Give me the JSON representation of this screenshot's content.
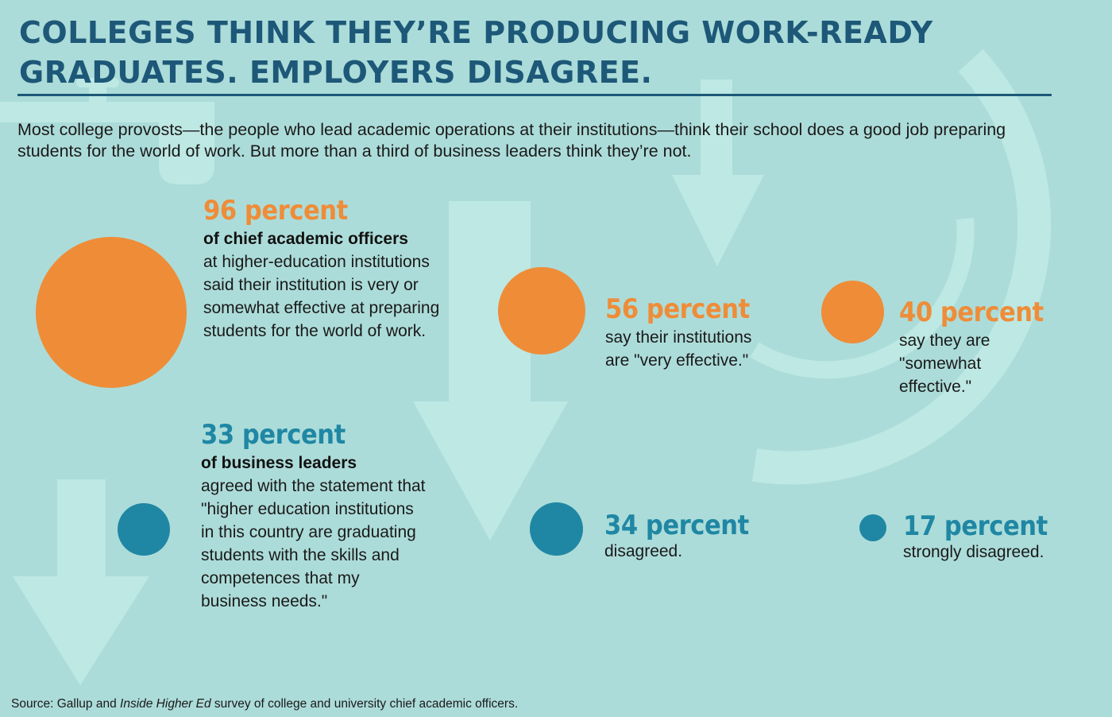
{
  "title": "Colleges think they’re producing work-ready graduates. Employers disagree.",
  "intro": "Most college provosts—the people who lead academic operations at their institutions—think their school does a good job preparing students for the world of work. But more than a third of business leaders think they’re not.",
  "colors": {
    "background": "#acdcd9",
    "orange": "#ef8c38",
    "teal": "#1f87a4",
    "title": "#1d5878",
    "watermark": "#bde8e3"
  },
  "icons": [
    "faucet-icon",
    "down-arrow-icon",
    "circular-arc-icon"
  ],
  "stats": {
    "academic_total": {
      "big": "96 percent",
      "lead": "of chief academic officers",
      "desc": "at higher-education institutions said their institution is very or somewhat effective at preparing students for the world of work."
    },
    "very_effective": {
      "big": "56 percent",
      "desc": "say their institutions are \"very effective.\""
    },
    "somewhat_effective": {
      "big": "40 percent",
      "desc": "say they are \"somewhat effective.\""
    },
    "business_agree": {
      "big": "33 percent",
      "lead": "of business leaders",
      "desc": "agreed with the statement that \"higher education institutions in this country are graduating students with the skills and competences that my business needs.\""
    },
    "business_disagree": {
      "big": "34 percent",
      "desc": "disagreed."
    },
    "business_strongly_disagree": {
      "big": "17 percent",
      "desc": "strongly disagreed."
    }
  },
  "source": {
    "prefix": "Source: Gallup and ",
    "italic": "Inside Higher Ed",
    "suffix": " survey of college and university chief academic officers."
  },
  "chart_data": {
    "type": "bubble",
    "groups": [
      {
        "name": "chief academic officers",
        "items": [
          {
            "label": "very or somewhat effective",
            "value": 96,
            "color": "#ef8c38"
          },
          {
            "label": "very effective",
            "value": 56,
            "color": "#ef8c38"
          },
          {
            "label": "somewhat effective",
            "value": 40,
            "color": "#ef8c38"
          }
        ]
      },
      {
        "name": "business leaders",
        "items": [
          {
            "label": "agreed",
            "value": 33,
            "color": "#1f87a4"
          },
          {
            "label": "disagreed",
            "value": 34,
            "color": "#1f87a4"
          },
          {
            "label": "strongly disagreed",
            "value": 17,
            "color": "#1f87a4"
          }
        ]
      }
    ]
  }
}
